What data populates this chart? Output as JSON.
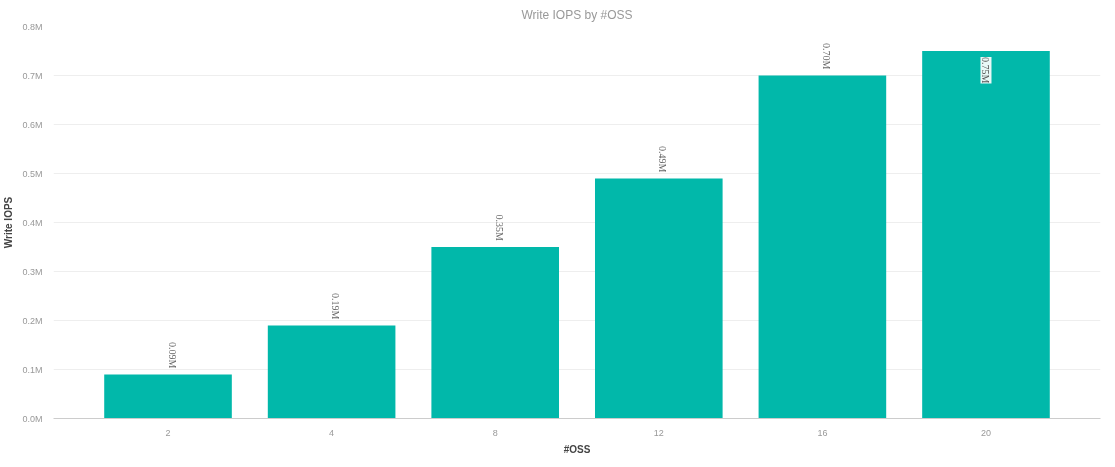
{
  "chart_data": {
    "type": "bar",
    "title": "Write IOPS by #OSS",
    "xlabel": "#OSS",
    "ylabel": "Write IOPS",
    "categories": [
      "2",
      "4",
      "8",
      "12",
      "16",
      "20"
    ],
    "values": [
      0.09,
      0.19,
      0.35,
      0.49,
      0.7,
      0.75
    ],
    "value_labels": [
      "0.09M",
      "0.19M",
      "0.35M",
      "0.49M",
      "0.70M",
      "0.75M"
    ],
    "color": "#01b8aa",
    "ylim": [
      0,
      0.8
    ],
    "yticks": [
      {
        "value": 0,
        "label": "0.0M"
      },
      {
        "value": 0.1,
        "label": "0.1M"
      },
      {
        "value": 0.2,
        "label": "0.2M"
      },
      {
        "value": 0.3,
        "label": "0.3M"
      },
      {
        "value": 0.4,
        "label": "0.4M"
      },
      {
        "value": 0.5,
        "label": "0.5M"
      },
      {
        "value": 0.6,
        "label": "0.6M"
      },
      {
        "value": 0.7,
        "label": "0.7M"
      },
      {
        "value": 0.8,
        "label": "0.8M"
      }
    ],
    "grid": "y"
  }
}
